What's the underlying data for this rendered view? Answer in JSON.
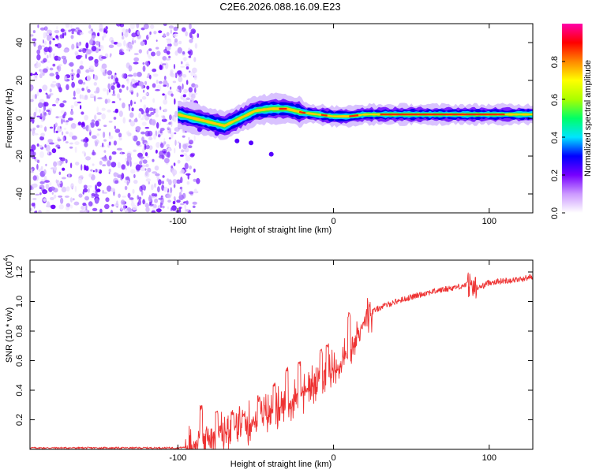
{
  "title": "C2E6.2026.088.16.09.E23",
  "chart_data": [
    {
      "type": "heatmap",
      "name": "spectrogram",
      "xlabel": "Height of straight line (km)",
      "ylabel": "Frequency (Hz)",
      "xlim": [
        -195,
        128
      ],
      "ylim": [
        -50,
        50
      ],
      "xticks": [
        {
          "value": -100,
          "label": "-100"
        },
        {
          "value": 0,
          "label": "0"
        },
        {
          "value": 100,
          "label": "100"
        }
      ],
      "yticks": [
        {
          "value": 40,
          "label": "40"
        },
        {
          "value": 20,
          "label": "20"
        },
        {
          "value": 0,
          "label": "0"
        },
        {
          "value": -20,
          "label": "-20"
        },
        {
          "value": -40,
          "label": "-40"
        }
      ],
      "noise_region_x": [
        -195,
        -93
      ],
      "ridge": {
        "description": "dominant frequency ridge",
        "x": [
          -100,
          -90,
          -80,
          -70,
          -60,
          -50,
          -40,
          -30,
          -20,
          -10,
          0,
          10,
          20,
          40,
          60,
          80,
          100,
          128
        ],
        "y": [
          2,
          0,
          -2,
          -4,
          0,
          4,
          5,
          5,
          3,
          2,
          1,
          1,
          2,
          2,
          2,
          2,
          2,
          2
        ]
      },
      "colorbar": {
        "label": "Normalized spectral amplitude",
        "range": [
          0,
          1
        ],
        "ticks": [
          {
            "value": 0.0,
            "label": "0.0"
          },
          {
            "value": 0.2,
            "label": "0.2"
          },
          {
            "value": 0.4,
            "label": "0.4"
          },
          {
            "value": 0.6,
            "label": "0.6"
          },
          {
            "value": 0.8,
            "label": "0.8"
          }
        ],
        "colors": [
          "#ffffff",
          "#cc99ff",
          "#7700ff",
          "#0000ff",
          "#00e5ff",
          "#00ff66",
          "#aaff00",
          "#ffff00",
          "#ff8800",
          "#ff0000",
          "#ff00aa"
        ]
      }
    },
    {
      "type": "line",
      "name": "snr",
      "xlabel": "Height of straight line (km)",
      "ylabel": "SNR (10 * v/v)",
      "y_multiplier": "(x10",
      "y_multiplier_exp": "4",
      "y_multiplier_close": ")",
      "xlim": [
        -195,
        128
      ],
      "ylim": [
        0,
        1.28
      ],
      "color": "#ee3333",
      "xticks": [
        {
          "value": -100,
          "label": "-100"
        },
        {
          "value": 0,
          "label": "0"
        },
        {
          "value": 100,
          "label": "100"
        }
      ],
      "yticks": [
        {
          "value": 0.2,
          "label": "0.2"
        },
        {
          "value": 0.4,
          "label": "0.4"
        },
        {
          "value": 0.6,
          "label": "0.6"
        },
        {
          "value": 0.8,
          "label": "0.8"
        },
        {
          "value": 1.0,
          "label": "1.0"
        },
        {
          "value": 1.2,
          "label": "1.2"
        }
      ],
      "trend": {
        "x": [
          -195,
          -100,
          -90,
          -80,
          -70,
          -60,
          -50,
          -40,
          -30,
          -20,
          -10,
          0,
          10,
          20,
          30,
          40,
          50,
          60,
          70,
          80,
          88,
          90,
          95,
          100,
          110,
          120,
          128
        ],
        "y": [
          0.01,
          0.01,
          0.02,
          0.08,
          0.12,
          0.15,
          0.2,
          0.25,
          0.28,
          0.38,
          0.45,
          0.55,
          0.62,
          0.9,
          0.96,
          1.0,
          1.03,
          1.06,
          1.08,
          1.1,
          1.12,
          1.09,
          1.1,
          1.13,
          1.14,
          1.15,
          1.17
        ]
      },
      "spikes": [
        {
          "x": -85,
          "y": 0.3
        },
        {
          "x": -75,
          "y": 0.26
        },
        {
          "x": -65,
          "y": 0.28
        },
        {
          "x": -58,
          "y": 0.27
        },
        {
          "x": -48,
          "y": 0.37
        },
        {
          "x": -38,
          "y": 0.45
        },
        {
          "x": -30,
          "y": 0.56
        },
        {
          "x": -22,
          "y": 0.6
        },
        {
          "x": -8,
          "y": 0.68
        },
        {
          "x": -4,
          "y": 0.72
        },
        {
          "x": 10,
          "y": 0.93
        },
        {
          "x": 18,
          "y": 0.85
        },
        {
          "x": 90,
          "y": 1.25
        }
      ]
    }
  ]
}
